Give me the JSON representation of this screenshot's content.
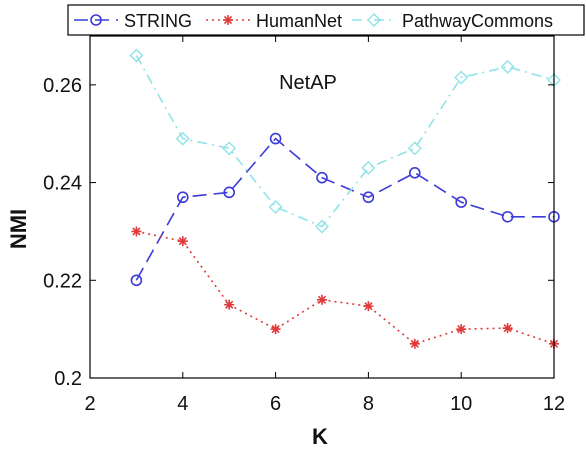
{
  "chart_data": {
    "type": "line",
    "title": "NetAP",
    "xlabel": "K",
    "ylabel": "NMI",
    "xlim": [
      2,
      12
    ],
    "ylim": [
      0.2,
      0.27
    ],
    "xticks": [
      2,
      4,
      6,
      8,
      10,
      12
    ],
    "yticks": [
      0.2,
      0.22,
      0.24,
      0.26
    ],
    "xtick_labels": [
      "2",
      "4",
      "6",
      "8",
      "10",
      "12"
    ],
    "ytick_labels": [
      "0.2",
      "0.22",
      "0.24",
      "0.26"
    ],
    "grid": false,
    "legend_position": "top",
    "x": [
      3,
      4,
      5,
      6,
      7,
      8,
      9,
      10,
      11,
      12
    ],
    "series": [
      {
        "name": "STRING",
        "color": "#3b3bd9",
        "line_style": "dashed",
        "marker": "circle",
        "values": [
          0.22,
          0.237,
          0.238,
          0.249,
          0.241,
          0.237,
          0.242,
          0.236,
          0.233,
          0.233
        ]
      },
      {
        "name": "HumanNet",
        "color": "#e03a3a",
        "line_style": "dotted",
        "marker": "asterisk",
        "values": [
          0.23,
          0.228,
          0.215,
          0.21,
          0.216,
          0.2147,
          0.207,
          0.21,
          0.2102,
          0.207
        ]
      },
      {
        "name": "PathwayCommons",
        "color": "#8fe3e8",
        "line_style": "dashdot",
        "marker": "diamond",
        "values": [
          0.266,
          0.249,
          0.247,
          0.235,
          0.231,
          0.243,
          0.247,
          0.2615,
          0.2637,
          0.261
        ]
      }
    ]
  }
}
